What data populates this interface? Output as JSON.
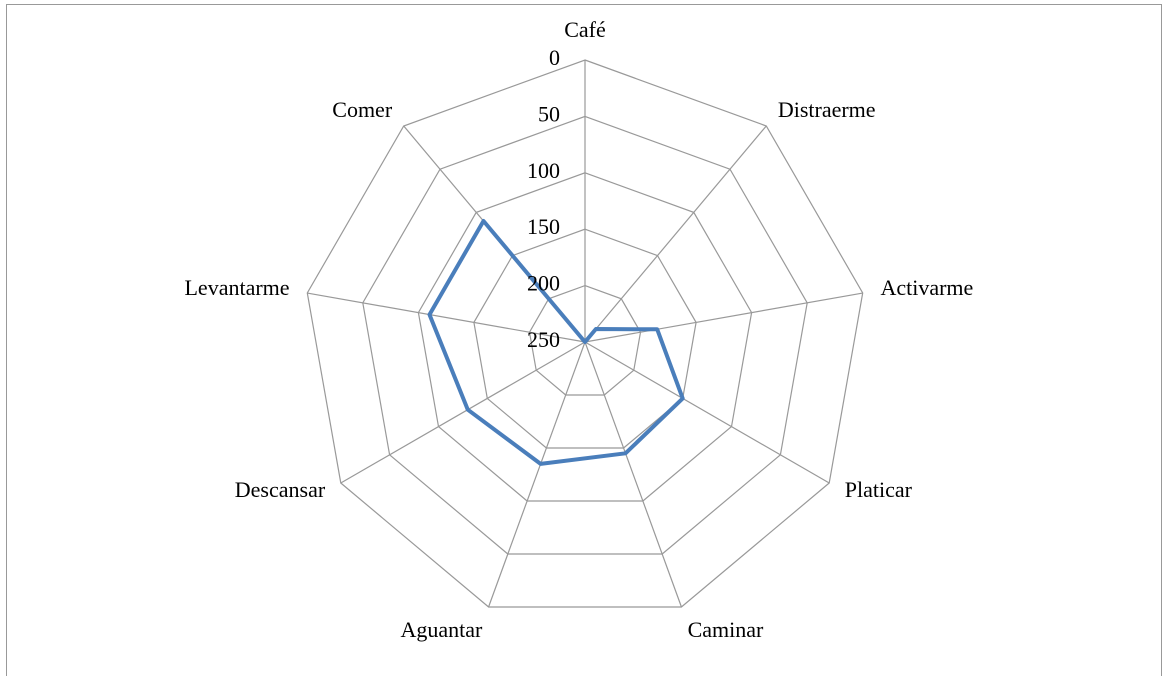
{
  "chart_data": {
    "type": "radar",
    "categories": [
      "Café",
      "Distraerme",
      "Activarme",
      "Platicar",
      "Caminar",
      "Aguantar",
      "Descansar",
      "Levantarme",
      "Comer"
    ],
    "series": [
      {
        "color": "#4a7ebb",
        "values": [
          250,
          235,
          185,
          150,
          145,
          135,
          130,
          110,
          110
        ]
      }
    ],
    "rlim": [
      0,
      250
    ],
    "rticks": [
      0,
      50,
      100,
      150,
      200,
      250
    ],
    "reversed": true,
    "grid": true
  }
}
